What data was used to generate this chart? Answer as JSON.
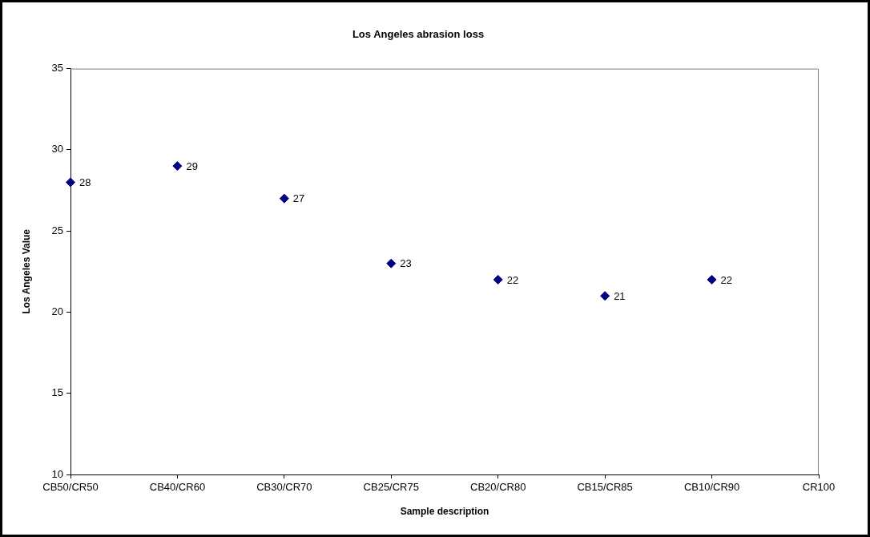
{
  "chart_data": {
    "type": "scatter",
    "title": "Los Angeles abrasion loss",
    "xlabel": "Sample description",
    "ylabel": "Los Angeles Value",
    "categories": [
      "CB50/CR50",
      "CB40/CR60",
      "CB30/CR70",
      "CB25/CR75",
      "CB20/CR80",
      "CB15/CR85",
      "CB10/CR90",
      "CR100"
    ],
    "series": [
      {
        "color": "#000080",
        "values": [
          28,
          29,
          27,
          23,
          22,
          21,
          22,
          null
        ]
      }
    ],
    "ylim": [
      10,
      35
    ],
    "yticks": [
      10,
      15,
      20,
      25,
      30,
      35
    ],
    "data_labels": true,
    "marker": "diamond",
    "grid": false,
    "legend": false
  }
}
